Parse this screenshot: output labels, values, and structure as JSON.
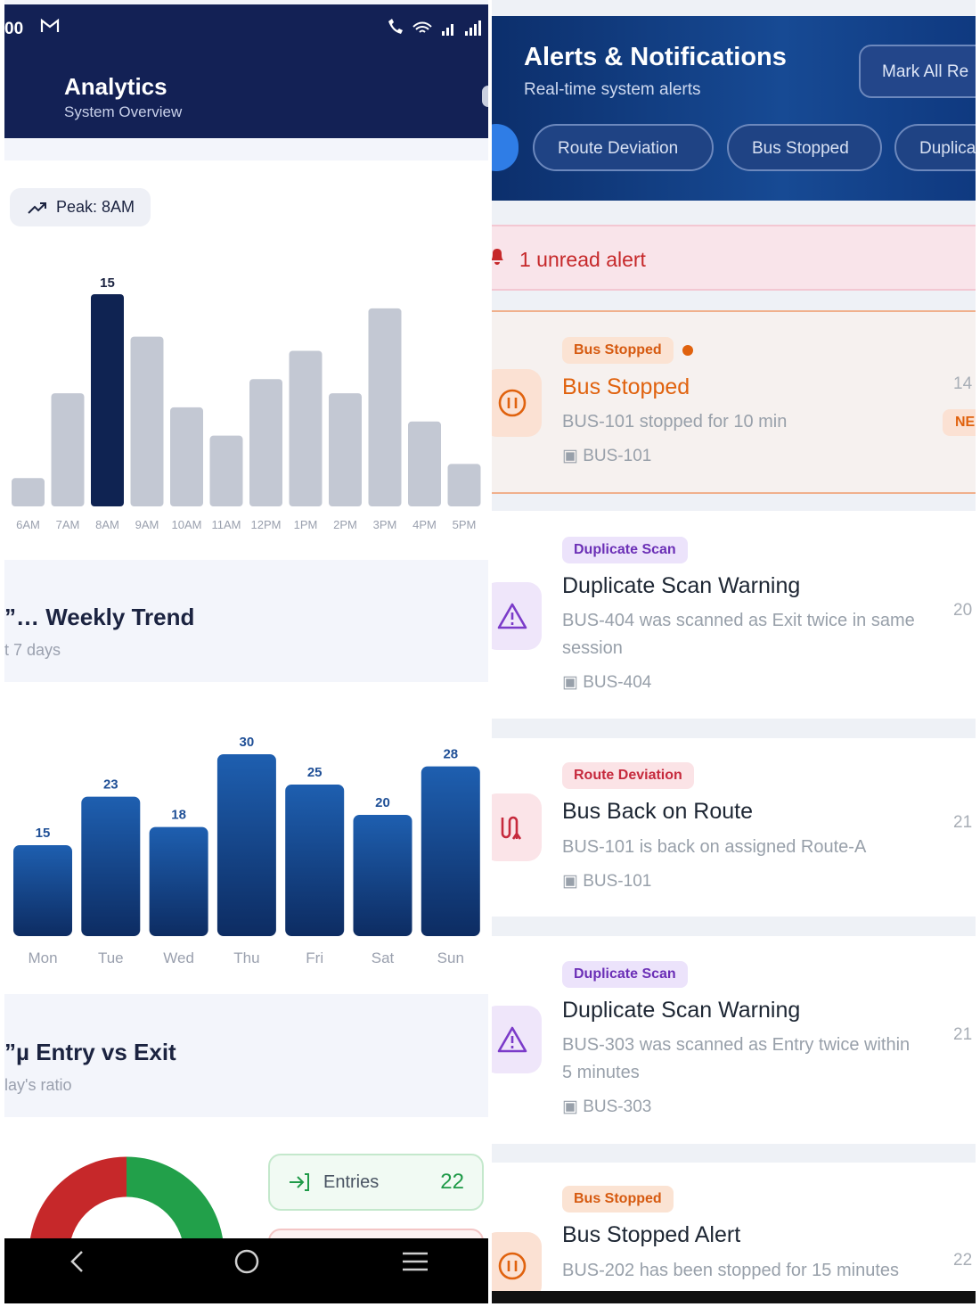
{
  "left": {
    "status": {
      "time": "00",
      "mail_icon": "gmail-icon",
      "right_icons": "wifi-signal-icons"
    },
    "header": {
      "title": "Analytics",
      "subtitle": "System Overview"
    },
    "peak_chip": {
      "label": "Peak: 8AM",
      "icon": "trend-up-icon"
    },
    "weekly": {
      "title": "”… Weekly Trend",
      "subtitle": "t 7 days"
    },
    "entry_exit": {
      "title": "”µ Entry vs Exit",
      "subtitle": "lay's ratio",
      "entries_label": "Entries",
      "entries_value": "22"
    },
    "nav": {
      "back": "‹",
      "home": "○",
      "menu": "≡"
    }
  },
  "chart_data": [
    {
      "type": "bar",
      "categories": [
        "6AM",
        "7AM",
        "8AM",
        "9AM",
        "10AM",
        "11AM",
        "12PM",
        "1PM",
        "2PM",
        "3PM",
        "4PM",
        "5PM"
      ],
      "values": [
        2,
        8,
        15,
        12,
        7,
        5,
        9,
        11,
        8,
        14,
        6,
        3
      ],
      "highlight": "8AM",
      "value_labels": {
        "8AM": "15"
      },
      "ylim": [
        0,
        15
      ],
      "colors": {
        "bar": "#c3c8d3",
        "highlight": "#0f2352"
      }
    },
    {
      "type": "bar",
      "categories": [
        "Mon",
        "Tue",
        "Wed",
        "Thu",
        "Fri",
        "Sat",
        "Sun"
      ],
      "values": [
        15,
        23,
        18,
        30,
        25,
        20,
        28
      ],
      "ylim": [
        0,
        30
      ],
      "colors": {
        "top": "#1e5fb0",
        "bottom": "#0d2c62",
        "label": "#1f4f96"
      }
    },
    {
      "type": "pie",
      "series": [
        {
          "values": [
            22,
            22
          ]
        }
      ],
      "colors": [
        "#22a04a",
        "#c6282a"
      ]
    }
  ],
  "right": {
    "header": {
      "title": "Alerts & Notifications",
      "subtitle": "Real-time system alerts",
      "mark_all": "Mark All Re"
    },
    "filters": [
      "Route Deviation",
      "Bus Stopped",
      "Duplica"
    ],
    "unread": {
      "text": "1 unread alert",
      "icon": "bell-icon"
    },
    "new_badge": "NE",
    "alerts": [
      {
        "tag": "Bus Stopped",
        "title": "Bus Stopped",
        "desc": "BUS-101 stopped for 10 min",
        "bus": "BUS-101",
        "time": "14",
        "icon": "pause-icon"
      },
      {
        "tag": "Duplicate Scan",
        "title": "Duplicate Scan Warning",
        "desc": "BUS-404 was scanned as Exit twice in same session",
        "bus": "BUS-404",
        "time": "20",
        "icon": "warning-icon"
      },
      {
        "tag": "Route Deviation",
        "title": "Bus Back on Route",
        "desc": "BUS-101 is back on assigned Route-A",
        "bus": "BUS-101",
        "time": "21",
        "icon": "route-icon"
      },
      {
        "tag": "Duplicate Scan",
        "title": "Duplicate Scan Warning",
        "desc": "BUS-303 was scanned as Entry twice within 5 minutes",
        "bus": "BUS-303",
        "time": "21",
        "icon": "warning-icon"
      },
      {
        "tag": "Bus Stopped",
        "title": "Bus Stopped Alert",
        "desc": "BUS-202 has been stopped for 15 minutes",
        "bus": "",
        "time": "22",
        "icon": "pause-icon"
      }
    ]
  }
}
